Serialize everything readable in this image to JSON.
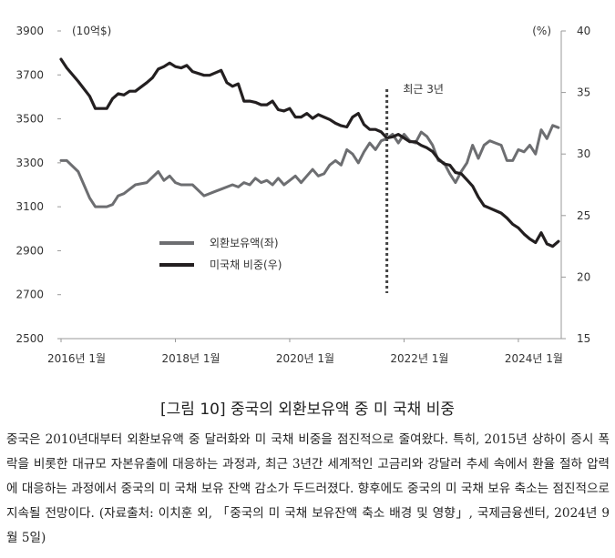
{
  "chart_data": {
    "type": "line",
    "unit_left": "(10억$)",
    "unit_right": "(%)",
    "left_axis": {
      "ticks": [
        2500,
        2700,
        2900,
        3100,
        3300,
        3500,
        3700,
        3900
      ],
      "range": [
        2500,
        3900
      ]
    },
    "right_axis": {
      "ticks": [
        15,
        20,
        25,
        30,
        35,
        40
      ],
      "range": [
        15,
        40
      ]
    },
    "x_axis": {
      "range": [
        2016.0,
        2024.75
      ],
      "ticks": [
        {
          "x": 2016.0,
          "label": "2016년 1월"
        },
        {
          "x": 2018.0,
          "label": "2018년 1월"
        },
        {
          "x": 2020.0,
          "label": "2020년 1월"
        },
        {
          "x": 2022.0,
          "label": "2022년 1월"
        },
        {
          "x": 2024.0,
          "label": "2024년 1월"
        }
      ]
    },
    "annotation": {
      "label": "최근 3년",
      "x": 2021.7
    },
    "series": [
      {
        "name": "외환보유액(좌)",
        "axis": "left",
        "color": "#6d6e71",
        "x": [
          2016.0,
          2016.1,
          2016.3,
          2016.5,
          2016.6,
          2016.8,
          2016.9,
          2017.0,
          2017.1,
          2017.2,
          2017.3,
          2017.5,
          2017.7,
          2017.8,
          2017.9,
          2018.0,
          2018.1,
          2018.2,
          2018.3,
          2018.5,
          2018.7,
          2018.8,
          2019.0,
          2019.1,
          2019.2,
          2019.3,
          2019.4,
          2019.5,
          2019.6,
          2019.7,
          2019.8,
          2019.9,
          2020.0,
          2020.1,
          2020.2,
          2020.3,
          2020.4,
          2020.5,
          2020.6,
          2020.7,
          2020.8,
          2020.9,
          2021.0,
          2021.1,
          2021.2,
          2021.3,
          2021.4,
          2021.5,
          2021.6,
          2021.7,
          2021.8,
          2021.9,
          2022.0,
          2022.1,
          2022.2,
          2022.3,
          2022.4,
          2022.5,
          2022.6,
          2022.7,
          2022.8,
          2022.9,
          2023.0,
          2023.1,
          2023.2,
          2023.3,
          2023.4,
          2023.5,
          2023.6,
          2023.7,
          2023.8,
          2023.9,
          2024.0,
          2024.1,
          2024.2,
          2024.3,
          2024.4,
          2024.5,
          2024.6,
          2024.7
        ],
        "values": [
          3310,
          3310,
          3260,
          3140,
          3100,
          3100,
          3110,
          3150,
          3160,
          3180,
          3200,
          3210,
          3260,
          3220,
          3240,
          3210,
          3200,
          3200,
          3200,
          3150,
          3170,
          3180,
          3200,
          3190,
          3210,
          3200,
          3230,
          3210,
          3220,
          3200,
          3230,
          3200,
          3220,
          3240,
          3210,
          3240,
          3270,
          3240,
          3250,
          3290,
          3310,
          3290,
          3360,
          3340,
          3300,
          3350,
          3390,
          3360,
          3400,
          3410,
          3430,
          3390,
          3430,
          3400,
          3390,
          3440,
          3420,
          3380,
          3310,
          3300,
          3250,
          3210,
          3260,
          3300,
          3380,
          3320,
          3380,
          3400,
          3390,
          3380,
          3310,
          3310,
          3360,
          3350,
          3380,
          3340,
          3450,
          3410,
          3470,
          3460
        ]
      },
      {
        "name": "미국채 비중(우)",
        "axis": "right",
        "color": "#231f20",
        "x": [
          2016.0,
          2016.1,
          2016.3,
          2016.5,
          2016.6,
          2016.8,
          2016.9,
          2017.0,
          2017.1,
          2017.2,
          2017.3,
          2017.5,
          2017.6,
          2017.7,
          2017.8,
          2017.9,
          2018.0,
          2018.1,
          2018.2,
          2018.3,
          2018.5,
          2018.6,
          2018.8,
          2018.9,
          2019.0,
          2019.1,
          2019.2,
          2019.3,
          2019.4,
          2019.5,
          2019.6,
          2019.7,
          2019.8,
          2019.9,
          2020.0,
          2020.1,
          2020.2,
          2020.3,
          2020.4,
          2020.5,
          2020.6,
          2020.7,
          2020.8,
          2020.9,
          2021.0,
          2021.1,
          2021.2,
          2021.3,
          2021.4,
          2021.5,
          2021.6,
          2021.7,
          2021.8,
          2021.9,
          2022.0,
          2022.1,
          2022.2,
          2022.3,
          2022.4,
          2022.5,
          2022.6,
          2022.7,
          2022.8,
          2022.9,
          2023.0,
          2023.1,
          2023.2,
          2023.3,
          2023.4,
          2023.5,
          2023.6,
          2023.7,
          2023.8,
          2023.9,
          2024.0,
          2024.1,
          2024.2,
          2024.3,
          2024.4,
          2024.5,
          2024.6,
          2024.7
        ],
        "values": [
          37.7,
          37,
          35.9,
          34.7,
          33.7,
          33.7,
          34.5,
          34.9,
          34.8,
          35.1,
          35.1,
          35.8,
          36.2,
          36.9,
          37.1,
          37.4,
          37.1,
          37,
          37.2,
          36.7,
          36.4,
          36.4,
          36.8,
          35.8,
          35.5,
          35.7,
          34.3,
          34.3,
          34.2,
          34.0,
          34,
          34.3,
          33.6,
          33.5,
          33.7,
          33.0,
          33.0,
          33.3,
          32.9,
          33.2,
          33,
          32.8,
          32.5,
          32.3,
          32.2,
          33.0,
          33.3,
          32.4,
          32.0,
          32.0,
          31.8,
          31.3,
          31.4,
          31.6,
          31.3,
          31.0,
          31.0,
          30.7,
          30.5,
          30.2,
          29.6,
          29.2,
          29.1,
          28.5,
          28.4,
          27.9,
          27.4,
          26.5,
          25.8,
          25.6,
          25.4,
          25.2,
          24.8,
          24.3,
          24.0,
          23.5,
          23.1,
          22.8,
          23.6,
          22.7,
          22.5,
          22.9
        ]
      }
    ]
  },
  "caption": {
    "title": "[그림 10] 중국의 외환보유액 중 미 국채 비중",
    "body": "중국은 2010년대부터 외환보유액 중 달러화와 미 국채 비중을 점진적으로 줄여왔다. 특히, 2015년 상하이 증시 폭락을 비롯한 대규모 자본유출에 대응하는 과정과, 최근 3년간 세계적인 고금리와 강달러 추세 속에서 환율 절하 압력에 대응하는 과정에서 중국의 미 국채 보유 잔액 감소가 두드러졌다. 향후에도 중국의 미 국채 보유 축소는 점진적으로 지속될 전망이다. (자료출처: 이치훈 외, 「중국의 미 국채 보유잔액 축소 배경 및 영향」, 국제금융센터, 2024년 9월 5일)"
  }
}
